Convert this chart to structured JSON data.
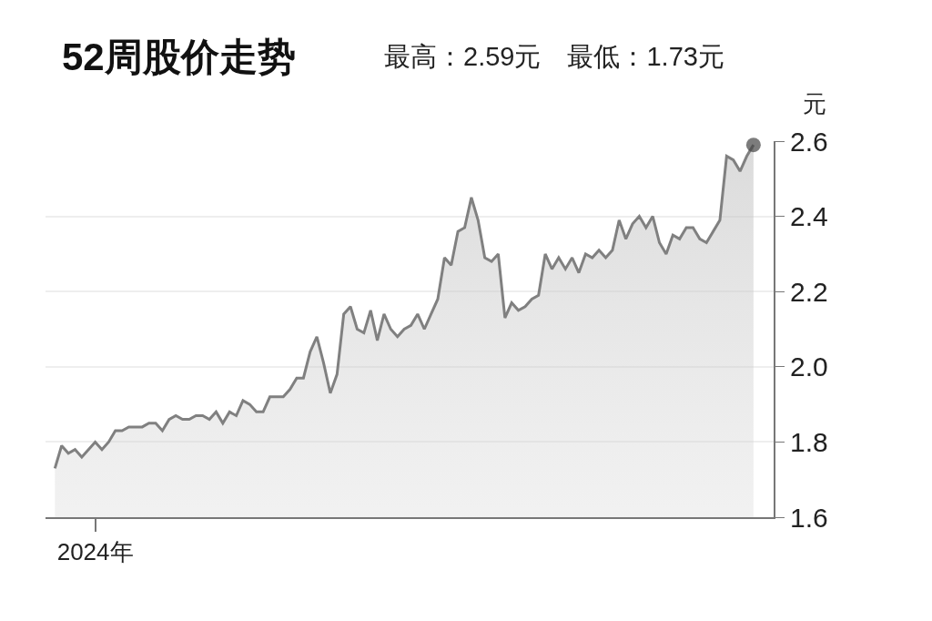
{
  "chart_data": {
    "type": "area",
    "title": "52周股价走势",
    "subtitle": "最高：2.59元　最低：1.73元",
    "ylabel": "元",
    "categories": [
      null,
      null,
      null,
      null,
      null,
      null,
      "2024年",
      null,
      null,
      null,
      null,
      null,
      null,
      null,
      null,
      null,
      null,
      null,
      null,
      null,
      null,
      null,
      null,
      null,
      null,
      null,
      null,
      null,
      null,
      null,
      null,
      null,
      null,
      null,
      null,
      null,
      null,
      null,
      null,
      null,
      null,
      null,
      null,
      null,
      null,
      null,
      null,
      null,
      null,
      null,
      null,
      null,
      null,
      null,
      null,
      null,
      null,
      null,
      null,
      null,
      null,
      null,
      null,
      null,
      null,
      null,
      null,
      null,
      null,
      null,
      null,
      null,
      null,
      null,
      null,
      null,
      null,
      null,
      null,
      null,
      null,
      null,
      null,
      null,
      null,
      null,
      null,
      null,
      null,
      null,
      null,
      null,
      null,
      null,
      null,
      null,
      null,
      null,
      null,
      null,
      null,
      null,
      null,
      null,
      null
    ],
    "series": [
      {
        "color": "#808080",
        "values": [
          1.73,
          1.79,
          1.77,
          1.78,
          1.76,
          1.78,
          1.8,
          1.78,
          1.8,
          1.83,
          1.83,
          1.84,
          1.84,
          1.84,
          1.85,
          1.85,
          1.83,
          1.86,
          1.87,
          1.86,
          1.86,
          1.87,
          1.87,
          1.86,
          1.88,
          1.85,
          1.88,
          1.87,
          1.91,
          1.9,
          1.88,
          1.88,
          1.92,
          1.92,
          1.92,
          1.94,
          1.97,
          1.97,
          2.04,
          2.08,
          2.01,
          1.93,
          1.98,
          2.14,
          2.16,
          2.1,
          2.09,
          2.15,
          2.07,
          2.14,
          2.1,
          2.08,
          2.1,
          2.11,
          2.14,
          2.1,
          2.14,
          2.18,
          2.29,
          2.27,
          2.36,
          2.37,
          2.45,
          2.39,
          2.29,
          2.28,
          2.3,
          2.13,
          2.17,
          2.15,
          2.16,
          2.18,
          2.19,
          2.3,
          2.26,
          2.29,
          2.26,
          2.29,
          2.25,
          2.3,
          2.29,
          2.31,
          2.29,
          2.31,
          2.39,
          2.34,
          2.38,
          2.4,
          2.37,
          2.4,
          2.33,
          2.3,
          2.35,
          2.34,
          2.37,
          2.37,
          2.34,
          2.33,
          2.36,
          2.39,
          2.56,
          2.55,
          2.52,
          2.56,
          2.59
        ]
      }
    ],
    "ylim": [
      1.6,
      2.6
    ],
    "yticks": [
      {
        "value": 1.6,
        "label": "1.6"
      },
      {
        "value": 1.8,
        "label": "1.8"
      },
      {
        "value": 2,
        "label": "2.0"
      },
      {
        "value": 2.2,
        "label": "2.2"
      },
      {
        "value": 2.4,
        "label": "2.4"
      },
      {
        "value": 2.6,
        "label": "2.6"
      }
    ],
    "grid": "y"
  }
}
